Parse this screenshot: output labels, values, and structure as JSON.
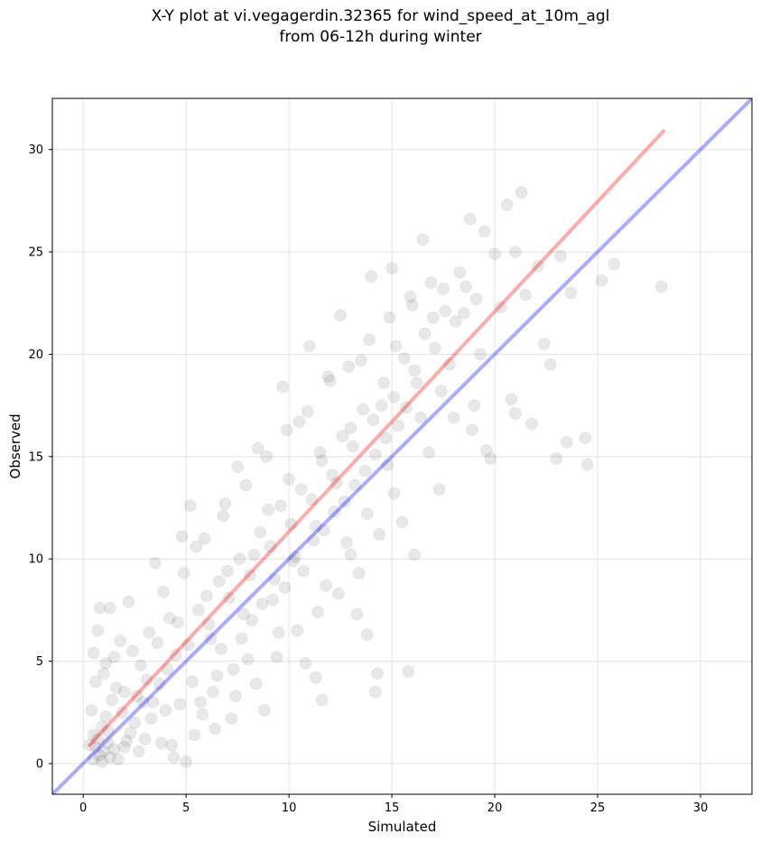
{
  "title_line1": "X-Y plot at vi.vegagerdin.32365 for wind_speed_at_10m_agl",
  "title_line2": "from 06-12h during winter",
  "chart_data": {
    "type": "scatter",
    "xlabel": "Simulated",
    "ylabel": "Observed",
    "xlim": [
      -1.5,
      32.5
    ],
    "ylim": [
      -1.5,
      32.5
    ],
    "xticks": [
      "0",
      "5",
      "10",
      "15",
      "20",
      "25",
      "30"
    ],
    "yticks": [
      "0",
      "5",
      "10",
      "15",
      "20",
      "25",
      "30"
    ],
    "grid": true,
    "colors": {
      "points": "#000000",
      "regression": "#ff0000",
      "identity": "#0000ff"
    },
    "lines": [
      {
        "role": "identity",
        "color": "#0000ff",
        "x": [
          -1.5,
          32.5
        ],
        "y": [
          -1.5,
          32.5
        ]
      },
      {
        "role": "regression",
        "color": "#ff0000",
        "x": [
          0.3,
          28.2
        ],
        "y": [
          0.9,
          30.9
        ]
      }
    ],
    "points": [
      [
        0.5,
        0.2
      ],
      [
        0.6,
        0.8
      ],
      [
        0.7,
        1.2
      ],
      [
        0.8,
        0.4
      ],
      [
        0.9,
        1.8
      ],
      [
        1.0,
        0.6
      ],
      [
        1.1,
        2.3
      ],
      [
        1.2,
        1.0
      ],
      [
        1.3,
        0.3
      ],
      [
        1.4,
        3.1
      ],
      [
        0.4,
        2.6
      ],
      [
        0.6,
        4.0
      ],
      [
        0.8,
        7.6
      ],
      [
        1.3,
        7.6
      ],
      [
        0.5,
        5.4
      ],
      [
        0.7,
        6.5
      ],
      [
        1.0,
        4.4
      ],
      [
        1.5,
        5.2
      ],
      [
        1.8,
        6.0
      ],
      [
        2.0,
        3.5
      ],
      [
        2.2,
        7.9
      ],
      [
        2.5,
        2.0
      ],
      [
        2.8,
        4.8
      ],
      [
        3.0,
        1.2
      ],
      [
        3.2,
        6.4
      ],
      [
        3.5,
        9.8
      ],
      [
        3.7,
        3.9
      ],
      [
        4.0,
        2.6
      ],
      [
        4.2,
        7.1
      ],
      [
        4.5,
        5.3
      ],
      [
        4.8,
        11.1
      ],
      [
        5.0,
        0.1
      ],
      [
        5.2,
        12.6
      ],
      [
        5.5,
        10.6
      ],
      [
        5.7,
        3.0
      ],
      [
        6.0,
        8.2
      ],
      [
        6.2,
        6.1
      ],
      [
        6.5,
        4.3
      ],
      [
        6.8,
        12.1
      ],
      [
        7.0,
        9.4
      ],
      [
        7.2,
        2.2
      ],
      [
        7.5,
        14.5
      ],
      [
        7.8,
        7.3
      ],
      [
        8.0,
        5.1
      ],
      [
        8.3,
        10.2
      ],
      [
        8.5,
        15.4
      ],
      [
        8.8,
        2.6
      ],
      [
        9.0,
        12.4
      ],
      [
        9.2,
        8.0
      ],
      [
        9.5,
        6.4
      ],
      [
        9.7,
        18.4
      ],
      [
        10.0,
        13.9
      ],
      [
        10.2,
        9.9
      ],
      [
        10.5,
        16.7
      ],
      [
        10.8,
        4.9
      ],
      [
        11.0,
        20.4
      ],
      [
        11.3,
        11.6
      ],
      [
        11.5,
        15.2
      ],
      [
        11.8,
        8.7
      ],
      [
        12.0,
        18.7
      ],
      [
        12.3,
        13.7
      ],
      [
        12.5,
        21.9
      ],
      [
        12.8,
        10.8
      ],
      [
        13.0,
        16.4
      ],
      [
        13.3,
        7.3
      ],
      [
        13.5,
        19.7
      ],
      [
        13.8,
        12.2
      ],
      [
        14.0,
        23.8
      ],
      [
        14.2,
        3.5
      ],
      [
        14.5,
        17.5
      ],
      [
        14.8,
        14.6
      ],
      [
        15.0,
        24.2
      ],
      [
        15.2,
        20.4
      ],
      [
        15.5,
        11.8
      ],
      [
        15.8,
        4.5
      ],
      [
        16.0,
        22.4
      ],
      [
        16.2,
        18.6
      ],
      [
        16.5,
        25.6
      ],
      [
        16.8,
        15.2
      ],
      [
        17.0,
        21.8
      ],
      [
        17.3,
        13.4
      ],
      [
        17.5,
        23.2
      ],
      [
        17.8,
        19.5
      ],
      [
        18.0,
        16.9
      ],
      [
        18.3,
        24.0
      ],
      [
        18.5,
        22.0
      ],
      [
        18.8,
        26.6
      ],
      [
        19.0,
        17.5
      ],
      [
        19.3,
        20.0
      ],
      [
        19.5,
        26.0
      ],
      [
        19.8,
        14.9
      ],
      [
        20.0,
        24.9
      ],
      [
        20.3,
        22.3
      ],
      [
        20.6,
        27.3
      ],
      [
        20.8,
        17.8
      ],
      [
        21.0,
        25.0
      ],
      [
        21.3,
        27.9
      ],
      [
        21.5,
        22.9
      ],
      [
        21.8,
        16.6
      ],
      [
        22.1,
        24.3
      ],
      [
        22.4,
        20.5
      ],
      [
        22.7,
        19.5
      ],
      [
        23.0,
        14.9
      ],
      [
        23.2,
        24.8
      ],
      [
        23.5,
        15.7
      ],
      [
        23.7,
        23.0
      ],
      [
        24.4,
        15.9
      ],
      [
        24.5,
        14.6
      ],
      [
        25.2,
        23.6
      ],
      [
        25.8,
        24.4
      ],
      [
        28.1,
        23.3
      ],
      [
        21.0,
        17.1
      ],
      [
        19.6,
        15.3
      ],
      [
        18.9,
        16.3
      ],
      [
        14.3,
        4.4
      ],
      [
        13.8,
        6.3
      ],
      [
        11.3,
        4.2
      ],
      [
        11.6,
        3.1
      ],
      [
        13.0,
        10.2
      ],
      [
        16.1,
        10.2
      ],
      [
        2.0,
        0.8
      ],
      [
        2.3,
        1.5
      ],
      [
        1.7,
        0.2
      ],
      [
        2.7,
        0.6
      ],
      [
        3.3,
        2.2
      ],
      [
        3.8,
        1.0
      ],
      [
        4.3,
        0.9
      ],
      [
        2.9,
        3.0
      ],
      [
        1.1,
        4.9
      ],
      [
        1.6,
        3.7
      ],
      [
        2.4,
        5.5
      ],
      [
        3.1,
        4.1
      ],
      [
        3.6,
        5.9
      ],
      [
        4.1,
        4.6
      ],
      [
        4.6,
        6.9
      ],
      [
        5.1,
        5.8
      ],
      [
        5.6,
        7.5
      ],
      [
        6.1,
        6.8
      ],
      [
        6.6,
        8.9
      ],
      [
        7.1,
        8.1
      ],
      [
        7.6,
        10.0
      ],
      [
        8.1,
        9.2
      ],
      [
        8.6,
        11.3
      ],
      [
        9.1,
        10.6
      ],
      [
        9.6,
        12.6
      ],
      [
        10.1,
        11.7
      ],
      [
        10.6,
        13.4
      ],
      [
        11.1,
        12.9
      ],
      [
        11.6,
        14.8
      ],
      [
        12.1,
        14.1
      ],
      [
        12.6,
        16.0
      ],
      [
        13.1,
        15.5
      ],
      [
        13.6,
        17.3
      ],
      [
        14.1,
        16.8
      ],
      [
        14.6,
        18.6
      ],
      [
        15.1,
        17.9
      ],
      [
        15.6,
        19.8
      ],
      [
        16.1,
        19.2
      ],
      [
        16.6,
        21.0
      ],
      [
        17.1,
        20.3
      ],
      [
        17.6,
        22.1
      ],
      [
        18.1,
        21.6
      ],
      [
        18.6,
        23.3
      ],
      [
        19.1,
        22.7
      ],
      [
        15.1,
        13.2
      ],
      [
        14.4,
        11.2
      ],
      [
        13.4,
        9.3
      ],
      [
        12.4,
        8.3
      ],
      [
        11.4,
        7.4
      ],
      [
        10.4,
        6.5
      ],
      [
        9.4,
        5.2
      ],
      [
        8.4,
        3.9
      ],
      [
        7.4,
        3.3
      ],
      [
        6.4,
        1.7
      ],
      [
        5.4,
        1.4
      ],
      [
        4.4,
        0.3
      ],
      [
        3.9,
        8.4
      ],
      [
        4.9,
        9.3
      ],
      [
        5.9,
        11.0
      ],
      [
        6.9,
        12.7
      ],
      [
        7.9,
        13.6
      ],
      [
        8.9,
        15.0
      ],
      [
        9.9,
        16.3
      ],
      [
        10.9,
        17.2
      ],
      [
        11.9,
        18.9
      ],
      [
        12.9,
        19.4
      ],
      [
        13.9,
        20.7
      ],
      [
        14.9,
        21.8
      ],
      [
        15.9,
        22.8
      ],
      [
        16.9,
        23.5
      ],
      [
        17.4,
        18.2
      ],
      [
        16.4,
        16.9
      ],
      [
        0.3,
        0.9
      ],
      [
        0.5,
        1.4
      ],
      [
        0.9,
        0.1
      ],
      [
        1.2,
        1.6
      ],
      [
        1.5,
        0.7
      ],
      [
        1.9,
        2.5
      ],
      [
        2.1,
        1.1
      ],
      [
        2.6,
        3.3
      ],
      [
        3.4,
        3.0
      ],
      [
        4.7,
        2.9
      ],
      [
        5.3,
        4.0
      ],
      [
        5.8,
        2.4
      ],
      [
        6.3,
        3.5
      ],
      [
        6.7,
        5.6
      ],
      [
        7.3,
        4.6
      ],
      [
        7.7,
        6.1
      ],
      [
        8.2,
        7.0
      ],
      [
        8.7,
        7.8
      ],
      [
        9.3,
        9.0
      ],
      [
        9.8,
        8.6
      ],
      [
        10.3,
        10.1
      ],
      [
        10.7,
        9.4
      ],
      [
        11.2,
        10.9
      ],
      [
        11.7,
        11.4
      ],
      [
        12.2,
        12.3
      ],
      [
        12.7,
        12.8
      ],
      [
        13.2,
        13.6
      ],
      [
        13.7,
        14.3
      ],
      [
        14.2,
        15.1
      ],
      [
        14.7,
        15.9
      ],
      [
        15.3,
        16.5
      ],
      [
        15.7,
        17.4
      ]
    ]
  }
}
